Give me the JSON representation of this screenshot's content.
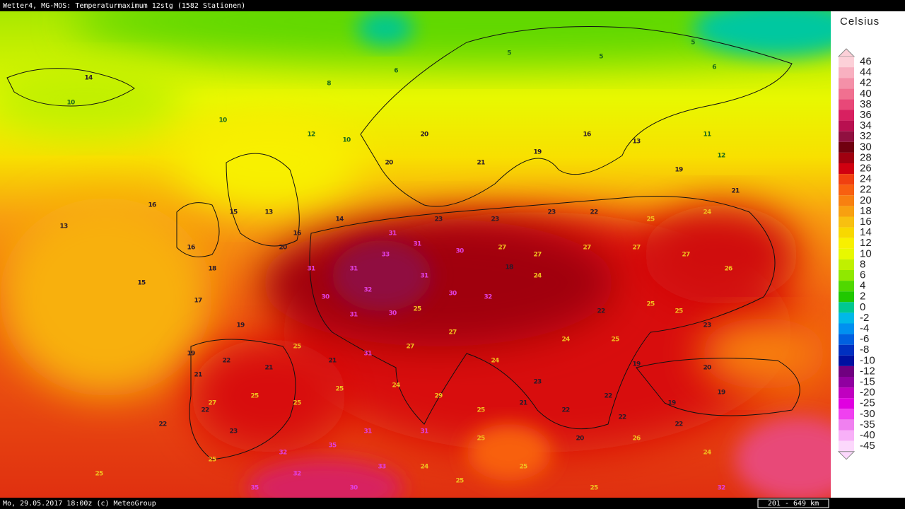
{
  "header": {
    "title": "Wetter4, MG-MOS: Temperaturmaximum 12stg (1582 Stationen)"
  },
  "map": {
    "stations": [
      13,
      16,
      15,
      17,
      19,
      8,
      6,
      5,
      5,
      5,
      6,
      14,
      10,
      10,
      12,
      10,
      20,
      20,
      21,
      19,
      16,
      13,
      11,
      12,
      19,
      21,
      24,
      25,
      22,
      23,
      23,
      23,
      31,
      31,
      33,
      31,
      32,
      31,
      30,
      27,
      27,
      27,
      27,
      27,
      26,
      18,
      24,
      32,
      30,
      25,
      30,
      31,
      30,
      31,
      20,
      13,
      15,
      16,
      18,
      16,
      14,
      22,
      25,
      25,
      23,
      24,
      25,
      19,
      20,
      19,
      19,
      22,
      23,
      24,
      27,
      27,
      31,
      21,
      25,
      21,
      22,
      21,
      27,
      25,
      25,
      25,
      24,
      29,
      25,
      21,
      22,
      22,
      22,
      24,
      26,
      20,
      25,
      31,
      31,
      35,
      32,
      23,
      22,
      19,
      22,
      25,
      35,
      32,
      30,
      33,
      24,
      25,
      25,
      25,
      32,
      25
    ]
  },
  "legend": {
    "unit": "Celsius",
    "entries": [
      {
        "label": 46,
        "color": "#fcd0d8"
      },
      {
        "label": 44,
        "color": "#f8b0c0"
      },
      {
        "label": 42,
        "color": "#f490a8"
      },
      {
        "label": 40,
        "color": "#f07090"
      },
      {
        "label": 38,
        "color": "#e84878"
      },
      {
        "label": 36,
        "color": "#d82060"
      },
      {
        "label": 34,
        "color": "#b81050"
      },
      {
        "label": 32,
        "color": "#901040"
      },
      {
        "label": 30,
        "color": "#700010"
      },
      {
        "label": 28,
        "color": "#a00010"
      },
      {
        "label": 26,
        "color": "#d00010"
      },
      {
        "label": 24,
        "color": "#f04010"
      },
      {
        "label": 22,
        "color": "#f86010"
      },
      {
        "label": 20,
        "color": "#f88010"
      },
      {
        "label": 18,
        "color": "#f8a010"
      },
      {
        "label": 16,
        "color": "#f8c010"
      },
      {
        "label": 14,
        "color": "#f8d800"
      },
      {
        "label": 12,
        "color": "#f8f000"
      },
      {
        "label": 10,
        "color": "#e8f800"
      },
      {
        "label": 8,
        "color": "#c0f000"
      },
      {
        "label": 6,
        "color": "#90e800"
      },
      {
        "label": 4,
        "color": "#50d800"
      },
      {
        "label": 2,
        "color": "#20c800"
      },
      {
        "label": 0,
        "color": "#00c890"
      },
      {
        "label": -2,
        "color": "#00b8e8"
      },
      {
        "label": -4,
        "color": "#0090f0"
      },
      {
        "label": -6,
        "color": "#0060e0"
      },
      {
        "label": -8,
        "color": "#0030c0"
      },
      {
        "label": -10,
        "color": "#0010a0"
      },
      {
        "label": -12,
        "color": "#700080"
      },
      {
        "label": -15,
        "color": "#9000a0"
      },
      {
        "label": -20,
        "color": "#c000c0"
      },
      {
        "label": -25,
        "color": "#e000e0"
      },
      {
        "label": -30,
        "color": "#f040f0"
      },
      {
        "label": -35,
        "color": "#f080f0"
      },
      {
        "label": -40,
        "color": "#f8b0f8"
      },
      {
        "label": -45,
        "color": "#fcd8fc"
      }
    ]
  },
  "footer": {
    "credit": "Mo, 29.05.2017 18:00z (c) MeteoGroup",
    "scale": "201 - 649 km"
  }
}
